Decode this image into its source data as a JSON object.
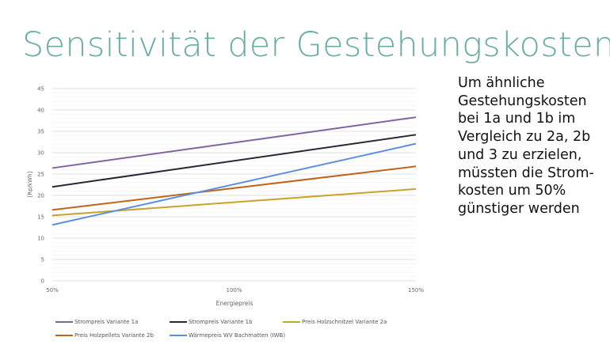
{
  "title": "Sensitivität der Gestehungskosten",
  "side_text": [
    "Um ähnliche",
    "Gestehungskosten",
    "bei 1a und 1b im",
    "Vergleich zu 2a, 2b",
    "und 3 zu erzielen,",
    "müssten die Strom-",
    "kosten um 50%",
    "günstiger werden"
  ],
  "chart_data": {
    "type": "line",
    "title": "",
    "xlabel": "Energiepreis",
    "ylabel": "[Rp/kWh]",
    "x": [
      50,
      150
    ],
    "xticks": [
      "50%",
      "100%",
      "150%"
    ],
    "xlim": [
      50,
      150
    ],
    "ylim": [
      0,
      45
    ],
    "yticks": [
      "0",
      "5",
      "10",
      "15",
      "20",
      "25",
      "30",
      "35",
      "40",
      "45"
    ],
    "grid": true,
    "legend_position": "bottom",
    "series": [
      {
        "name": "Strompreis Variante 1a",
        "values": [
          26.4,
          38.3
        ],
        "color": "#8064a2"
      },
      {
        "name": "Strompreis Variante 1b",
        "values": [
          22.0,
          34.2
        ],
        "color": "#2a2838"
      },
      {
        "name": "Preis Holzschnitzel Variante 2a",
        "values": [
          15.3,
          21.5
        ],
        "color": "#c9a227"
      },
      {
        "name": "Preis Holzpellets Variante 2b",
        "values": [
          16.6,
          26.8
        ],
        "color": "#c0641c"
      },
      {
        "name": "Wärmepreis WV Bachmatten (IWB)",
        "values": [
          13.1,
          32.1
        ],
        "color": "#5b8fde"
      }
    ]
  }
}
